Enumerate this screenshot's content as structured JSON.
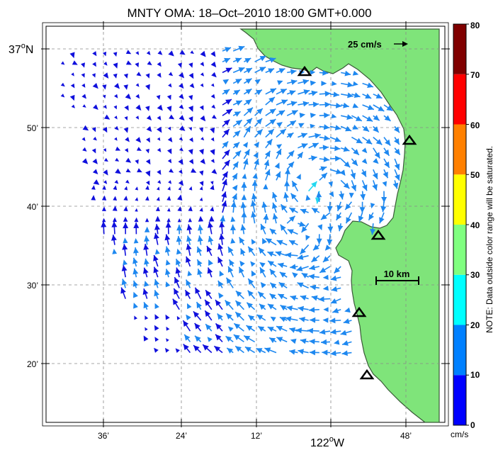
{
  "title": "MNTY OMA: 18–Oct–2010 18:00 GMT+0.000",
  "lat_labels": {
    "main": "37",
    "deg": "o",
    "hemi": "N",
    "l50": "50’",
    "l40": "40’",
    "l30": "30’",
    "l20": "20’"
  },
  "lon_labels": {
    "l36": "36’",
    "l24": "24’",
    "l12": "12’",
    "main": "122",
    "deg": "o",
    "hemi": "W",
    "l48": "48’"
  },
  "scale_arrow_label": "25 cm/s",
  "distance_scale_label": "10 km",
  "colorbar": {
    "ticks": [
      "80",
      "70",
      "60",
      "50",
      "40",
      "30",
      "20",
      "10",
      "0"
    ],
    "unit": "cm/s",
    "note": "NOTE: Data outside color range will be saturated.",
    "colors": [
      "#0000ff",
      "#0080ff",
      "#00ffff",
      "#80ff80",
      "#ffff00",
      "#ff8000",
      "#ff0000",
      "#800000"
    ]
  },
  "map_colors": {
    "land": "#7fe47a",
    "vector_dark": "#1010dd",
    "vector_mid": "#1e88f0",
    "vector_fast": "#22d8f0",
    "site": "#000000"
  },
  "sites_count_visible": 5
}
